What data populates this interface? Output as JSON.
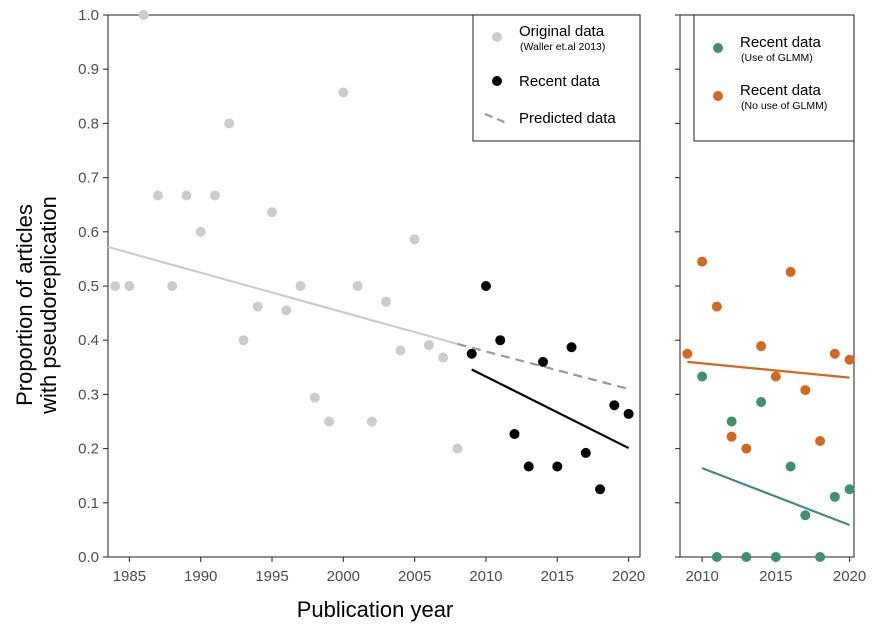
{
  "chart_data": [
    {
      "type": "scatter",
      "panel": "left",
      "xlabel": "Publication year",
      "ylabel_lines": [
        "Proportion of articles",
        "with pseudoreplication"
      ],
      "xlim": [
        1983.5,
        2020.8
      ],
      "ylim": [
        0,
        1
      ],
      "x_ticks": [
        "1985",
        "1990",
        "1995",
        "2000",
        "2005",
        "2010",
        "2015",
        "2020"
      ],
      "y_ticks": [
        "0.0",
        "0.1",
        "0.2",
        "0.3",
        "0.4",
        "0.5",
        "0.6",
        "0.7",
        "0.8",
        "0.9",
        "1.0"
      ],
      "grid": false,
      "legend_position": "top-right",
      "legend": [
        {
          "key": "original",
          "label": "Original data",
          "sublabel": "(Waller et.al 2013)",
          "marker": "point",
          "color": "#cccccc"
        },
        {
          "key": "recent",
          "label": "Recent data",
          "sublabel": "",
          "marker": "point",
          "color": "#000000"
        },
        {
          "key": "predicted",
          "label": "Predicted data",
          "sublabel": "",
          "marker": "dash",
          "color": "#999999"
        }
      ],
      "series": [
        {
          "key": "original",
          "name": "Original data",
          "color": "#cccccc",
          "points": [
            [
              1984,
              0.5
            ],
            [
              1985,
              0.5
            ],
            [
              1986,
              1.0
            ],
            [
              1987,
              0.667
            ],
            [
              1988,
              0.5
            ],
            [
              1989,
              0.667
            ],
            [
              1990,
              0.6
            ],
            [
              1991,
              0.667
            ],
            [
              1992,
              0.8
            ],
            [
              1993,
              0.4
            ],
            [
              1994,
              0.462
            ],
            [
              1995,
              0.636
            ],
            [
              1996,
              0.455
            ],
            [
              1997,
              0.5
            ],
            [
              1998,
              0.294
            ],
            [
              1999,
              0.25
            ],
            [
              2000,
              0.857
            ],
            [
              2001,
              0.5
            ],
            [
              2002,
              0.25
            ],
            [
              2003,
              0.471
            ],
            [
              2004,
              0.381
            ],
            [
              2005,
              0.586
            ],
            [
              2006,
              0.391
            ],
            [
              2007,
              0.368
            ],
            [
              2008,
              0.2
            ]
          ],
          "fit": {
            "x": [
              1983.5,
              2008
            ],
            "y": [
              0.572,
              0.393
            ],
            "color": "#cccccc",
            "style": "solid"
          }
        },
        {
          "key": "recent",
          "name": "Recent data",
          "color": "#000000",
          "points": [
            [
              2009,
              0.375
            ],
            [
              2010,
              0.5
            ],
            [
              2011,
              0.4
            ],
            [
              2012,
              0.227
            ],
            [
              2013,
              0.167
            ],
            [
              2014,
              0.36
            ],
            [
              2015,
              0.167
            ],
            [
              2016,
              0.387
            ],
            [
              2017,
              0.192
            ],
            [
              2018,
              0.125
            ],
            [
              2019,
              0.28
            ],
            [
              2020,
              0.264
            ]
          ],
          "fit": {
            "x": [
              2009,
              2020
            ],
            "y": [
              0.346,
              0.201
            ],
            "color": "#000000",
            "style": "solid"
          }
        },
        {
          "key": "predicted",
          "name": "Predicted data",
          "color": "#999999",
          "points": [],
          "fit": {
            "x": [
              2008,
              2020
            ],
            "y": [
              0.393,
              0.31
            ],
            "color": "#999999",
            "style": "dashed"
          }
        }
      ]
    },
    {
      "type": "scatter",
      "panel": "right",
      "xlim": [
        2008.5,
        2020.3
      ],
      "ylim": [
        0,
        1
      ],
      "x_ticks": [
        "2010",
        "2015",
        "2020"
      ],
      "grid": false,
      "legend_position": "top",
      "legend": [
        {
          "key": "glmm",
          "label": "Recent data",
          "sublabel": "(Use of GLMM)",
          "marker": "point",
          "color": "#3f8f73"
        },
        {
          "key": "noglmm",
          "label": "Recent data",
          "sublabel": "(No use of GLMM)",
          "marker": "point",
          "color": "#d2691e"
        }
      ],
      "series": [
        {
          "key": "glmm",
          "name": "Recent data (Use of GLMM)",
          "color": "#3f8f73",
          "points": [
            [
              2010,
              0.333
            ],
            [
              2011,
              0.0
            ],
            [
              2012,
              0.25
            ],
            [
              2013,
              0.0
            ],
            [
              2014,
              0.286
            ],
            [
              2015,
              0.0
            ],
            [
              2016,
              0.167
            ],
            [
              2017,
              0.077
            ],
            [
              2018,
              0.0
            ],
            [
              2019,
              0.111
            ],
            [
              2020,
              0.125
            ]
          ],
          "fit": {
            "x": [
              2010,
              2020
            ],
            "y": [
              0.164,
              0.059
            ],
            "color": "#3f8f73",
            "style": "solid"
          }
        },
        {
          "key": "noglmm",
          "name": "Recent data (No use of GLMM)",
          "color": "#d2691e",
          "points": [
            [
              2009,
              0.375
            ],
            [
              2010,
              0.545
            ],
            [
              2011,
              0.462
            ],
            [
              2012,
              0.222
            ],
            [
              2013,
              0.2
            ],
            [
              2014,
              0.389
            ],
            [
              2015,
              0.333
            ],
            [
              2016,
              0.526
            ],
            [
              2017,
              0.308
            ],
            [
              2018,
              0.214
            ],
            [
              2019,
              0.375
            ],
            [
              2020,
              0.364
            ]
          ],
          "fit": {
            "x": [
              2009,
              2020
            ],
            "y": [
              0.36,
              0.331
            ],
            "color": "#d2691e",
            "style": "solid"
          }
        }
      ]
    }
  ]
}
